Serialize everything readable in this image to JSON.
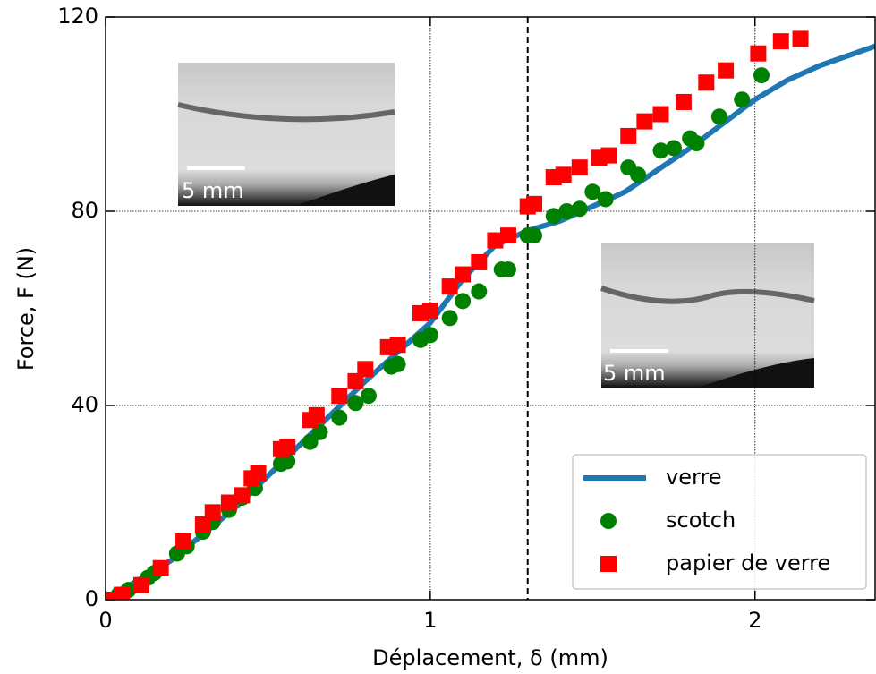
{
  "chart_data": {
    "type": "line",
    "xlabel": "Déplacement, δ (mm)",
    "ylabel": "Force, F (N)",
    "xlim": [
      0,
      2.37
    ],
    "ylim": [
      0,
      120
    ],
    "xticks": [
      0,
      1,
      2
    ],
    "yticks": [
      0,
      40,
      80,
      120
    ],
    "grid": true,
    "reference_line": 1.3,
    "legend": "lower right",
    "annotations": [
      "5 mm",
      "5 mm"
    ],
    "series": [
      {
        "name": "verre",
        "color": "#1f77b4",
        "marker": "line",
        "x": [
          0,
          0.2,
          0.4,
          0.6,
          0.8,
          1.0,
          1.1,
          1.2,
          1.3,
          1.4,
          1.6,
          1.8,
          1.9,
          2.0,
          2.1,
          2.2,
          2.37
        ],
        "values": [
          0,
          8,
          19,
          32,
          45,
          57,
          66,
          73,
          76,
          78,
          84,
          93,
          98,
          103,
          107,
          110,
          114
        ]
      },
      {
        "name": "scotch",
        "color": "#008000",
        "marker": "circle",
        "x": [
          0.01,
          0.04,
          0.07,
          0.13,
          0.15,
          0.22,
          0.25,
          0.3,
          0.33,
          0.38,
          0.42,
          0.46,
          0.54,
          0.56,
          0.63,
          0.66,
          0.72,
          0.77,
          0.81,
          0.88,
          0.9,
          0.97,
          1.0,
          1.06,
          1.1,
          1.15,
          1.22,
          1.24,
          1.3,
          1.32,
          1.38,
          1.42,
          1.46,
          1.5,
          1.54,
          1.61,
          1.64,
          1.71,
          1.75,
          1.8,
          1.82,
          1.89,
          1.96,
          2.02
        ],
        "values": [
          0,
          1,
          2,
          4.5,
          5.5,
          9.5,
          11,
          14,
          16,
          18.5,
          21,
          23,
          28,
          28.5,
          32.5,
          34.5,
          37.5,
          40.5,
          42,
          48,
          48.5,
          53.5,
          54.5,
          58,
          61.5,
          63.5,
          68,
          68,
          75,
          75,
          79,
          80,
          80.5,
          84,
          82.5,
          89,
          87.5,
          92.5,
          93,
          95,
          94,
          99.5,
          103,
          108
        ]
      },
      {
        "name": "papier de verre",
        "color": "#ff0000",
        "marker": "square",
        "x": [
          0.01,
          0.05,
          0.11,
          0.17,
          0.24,
          0.3,
          0.33,
          0.38,
          0.42,
          0.45,
          0.47,
          0.54,
          0.56,
          0.63,
          0.65,
          0.72,
          0.77,
          0.8,
          0.87,
          0.9,
          0.97,
          1.0,
          1.06,
          1.1,
          1.15,
          1.2,
          1.24,
          1.3,
          1.32,
          1.38,
          1.41,
          1.46,
          1.52,
          1.55,
          1.61,
          1.66,
          1.71,
          1.78,
          1.85,
          1.91,
          2.01,
          2.08,
          2.14
        ],
        "values": [
          0,
          1,
          3,
          6.5,
          12,
          15.5,
          18,
          20,
          21.5,
          25,
          26,
          31,
          31.5,
          37,
          38,
          42,
          45,
          47.5,
          52,
          52.5,
          59,
          59.5,
          64.5,
          67,
          69.5,
          74,
          75,
          81,
          81.5,
          87,
          87.5,
          89,
          91,
          91.5,
          95.5,
          98.5,
          100,
          102.5,
          106.5,
          109,
          112.5,
          115,
          115.5
        ]
      }
    ]
  }
}
